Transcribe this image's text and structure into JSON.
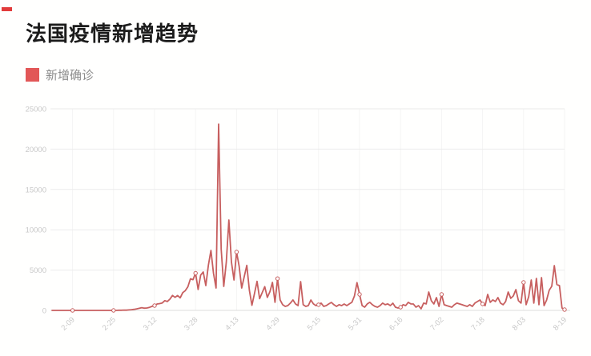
{
  "page": {
    "background": "#fffffe"
  },
  "header": {
    "accent_dash_color": "#e23b3b",
    "title": "法国疫情新增趋势"
  },
  "legend": {
    "swatch_color": "#e25757",
    "label": "新增确诊"
  },
  "chart_data": {
    "type": "line",
    "title": "法国疫情新增趋势",
    "series_name": "新增确诊",
    "line_color": "#c75f5f",
    "grid_color": "#ebebeb",
    "grid_minor_color": "#f4f4f4",
    "axis_line_color": "#dcdcdc",
    "axis_label_color": "#c8c8c8",
    "legend_position": "top-left",
    "grid": true,
    "ylim": [
      0,
      25000
    ],
    "y_ticks": [
      0,
      5000,
      10000,
      15000,
      20000,
      25000
    ],
    "x_ticks": [
      "2-09",
      "2-25",
      "3-12",
      "3-28",
      "4-13",
      "4-29",
      "5-15",
      "5-31",
      "6-16",
      "7-02",
      "7-18",
      "8-03",
      "8-19"
    ],
    "x_tick_start_index": 8,
    "x_tick_step_days": 16,
    "dates": [
      "2-01",
      "2-02",
      "2-03",
      "2-04",
      "2-05",
      "2-06",
      "2-07",
      "2-08",
      "2-09",
      "2-10",
      "2-11",
      "2-12",
      "2-13",
      "2-14",
      "2-15",
      "2-16",
      "2-17",
      "2-18",
      "2-19",
      "2-20",
      "2-21",
      "2-22",
      "2-23",
      "2-24",
      "2-25",
      "2-26",
      "2-27",
      "2-28",
      "2-29",
      "3-01",
      "3-02",
      "3-03",
      "3-04",
      "3-05",
      "3-06",
      "3-07",
      "3-08",
      "3-09",
      "3-10",
      "3-11",
      "3-12",
      "3-13",
      "3-14",
      "3-15",
      "3-16",
      "3-17",
      "3-18",
      "3-19",
      "3-20",
      "3-21",
      "3-22",
      "3-23",
      "3-24",
      "3-25",
      "3-26",
      "3-27",
      "3-28",
      "3-29",
      "3-30",
      "3-31",
      "4-01",
      "4-02",
      "4-03",
      "4-04",
      "4-05",
      "4-06",
      "4-07",
      "4-08",
      "4-09",
      "4-10",
      "4-11",
      "4-12",
      "4-13",
      "4-14",
      "4-15",
      "4-16",
      "4-17",
      "4-18",
      "4-19",
      "4-20",
      "4-21",
      "4-22",
      "4-23",
      "4-24",
      "4-25",
      "4-26",
      "4-27",
      "4-28",
      "4-29",
      "4-30",
      "5-01",
      "5-02",
      "5-03",
      "5-04",
      "5-05",
      "5-06",
      "5-07",
      "5-08",
      "5-09",
      "5-10",
      "5-11",
      "5-12",
      "5-13",
      "5-14",
      "5-15",
      "5-16",
      "5-17",
      "5-18",
      "5-19",
      "5-20",
      "5-21",
      "5-22",
      "5-23",
      "5-24",
      "5-25",
      "5-26",
      "5-27",
      "5-28",
      "5-29",
      "5-30",
      "5-31",
      "6-01",
      "6-02",
      "6-03",
      "6-04",
      "6-05",
      "6-06",
      "6-07",
      "6-08",
      "6-09",
      "6-10",
      "6-11",
      "6-12",
      "6-13",
      "6-14",
      "6-15",
      "6-16",
      "6-17",
      "6-18",
      "6-19",
      "6-20",
      "6-21",
      "6-22",
      "6-23",
      "6-24",
      "6-25",
      "6-26",
      "6-27",
      "6-28",
      "6-29",
      "6-30",
      "7-01",
      "7-02",
      "7-03",
      "7-04",
      "7-05",
      "7-06",
      "7-07",
      "7-08",
      "7-09",
      "7-10",
      "7-11",
      "7-12",
      "7-13",
      "7-14",
      "7-15",
      "7-16",
      "7-17",
      "7-18",
      "7-19",
      "7-20",
      "7-21",
      "7-22",
      "7-23",
      "7-24",
      "7-25",
      "7-26",
      "7-27",
      "7-28",
      "7-29",
      "7-30",
      "7-31",
      "8-01",
      "8-02",
      "8-03",
      "8-04",
      "8-05",
      "8-06",
      "8-07",
      "8-08",
      "8-09",
      "8-10",
      "8-11",
      "8-12",
      "8-13",
      "8-14",
      "8-15",
      "8-16",
      "8-17",
      "8-18",
      "8-19"
    ],
    "values": [
      0,
      0,
      0,
      0,
      0,
      0,
      0,
      0,
      0,
      0,
      2,
      0,
      1,
      0,
      0,
      0,
      0,
      0,
      0,
      0,
      0,
      0,
      0,
      0,
      1,
      2,
      18,
      19,
      43,
      30,
      60,
      90,
      130,
      190,
      260,
      340,
      280,
      300,
      380,
      500,
      600,
      790,
      840,
      920,
      1210,
      1100,
      1400,
      1860,
      1620,
      1850,
      1560,
      2200,
      2450,
      2930,
      3920,
      3810,
      4610,
      2600,
      4380,
      4760,
      3080,
      5600,
      7440,
      4600,
      2780,
      23100,
      7600,
      2980,
      6000,
      11210,
      6000,
      3770,
      7240,
      5500,
      2780,
      4200,
      5590,
      2500,
      630,
      2100,
      3600,
      1460,
      2200,
      2950,
      1620,
      2300,
      3470,
      1000,
      3950,
      1300,
      700,
      500,
      600,
      900,
      1300,
      800,
      600,
      3570,
      700,
      500,
      600,
      1290,
      800,
      600,
      700,
      900,
      500,
      600,
      800,
      990,
      700,
      500,
      700,
      600,
      790,
      600,
      800,
      1000,
      1800,
      3440,
      1980,
      600,
      400,
      800,
      1000,
      700,
      500,
      400,
      600,
      900,
      700,
      800,
      600,
      890,
      400,
      300,
      400,
      700,
      600,
      1000,
      800,
      790,
      400,
      600,
      200,
      900,
      800,
      2280,
      1200,
      800,
      1590,
      500,
      1980,
      700,
      600,
      500,
      400,
      700,
      900,
      800,
      700,
      600,
      500,
      700,
      500,
      900,
      1100,
      1290,
      800,
      600,
      1980,
      1000,
      1300,
      1100,
      1590,
      900,
      700,
      1100,
      2280,
      1500,
      1800,
      2580,
      1200,
      900,
      3470,
      700,
      1700,
      3770,
      900,
      3970,
      700,
      4070,
      600,
      1290,
      2500,
      3000,
      5560,
      3200,
      3075,
      300,
      100
    ]
  }
}
